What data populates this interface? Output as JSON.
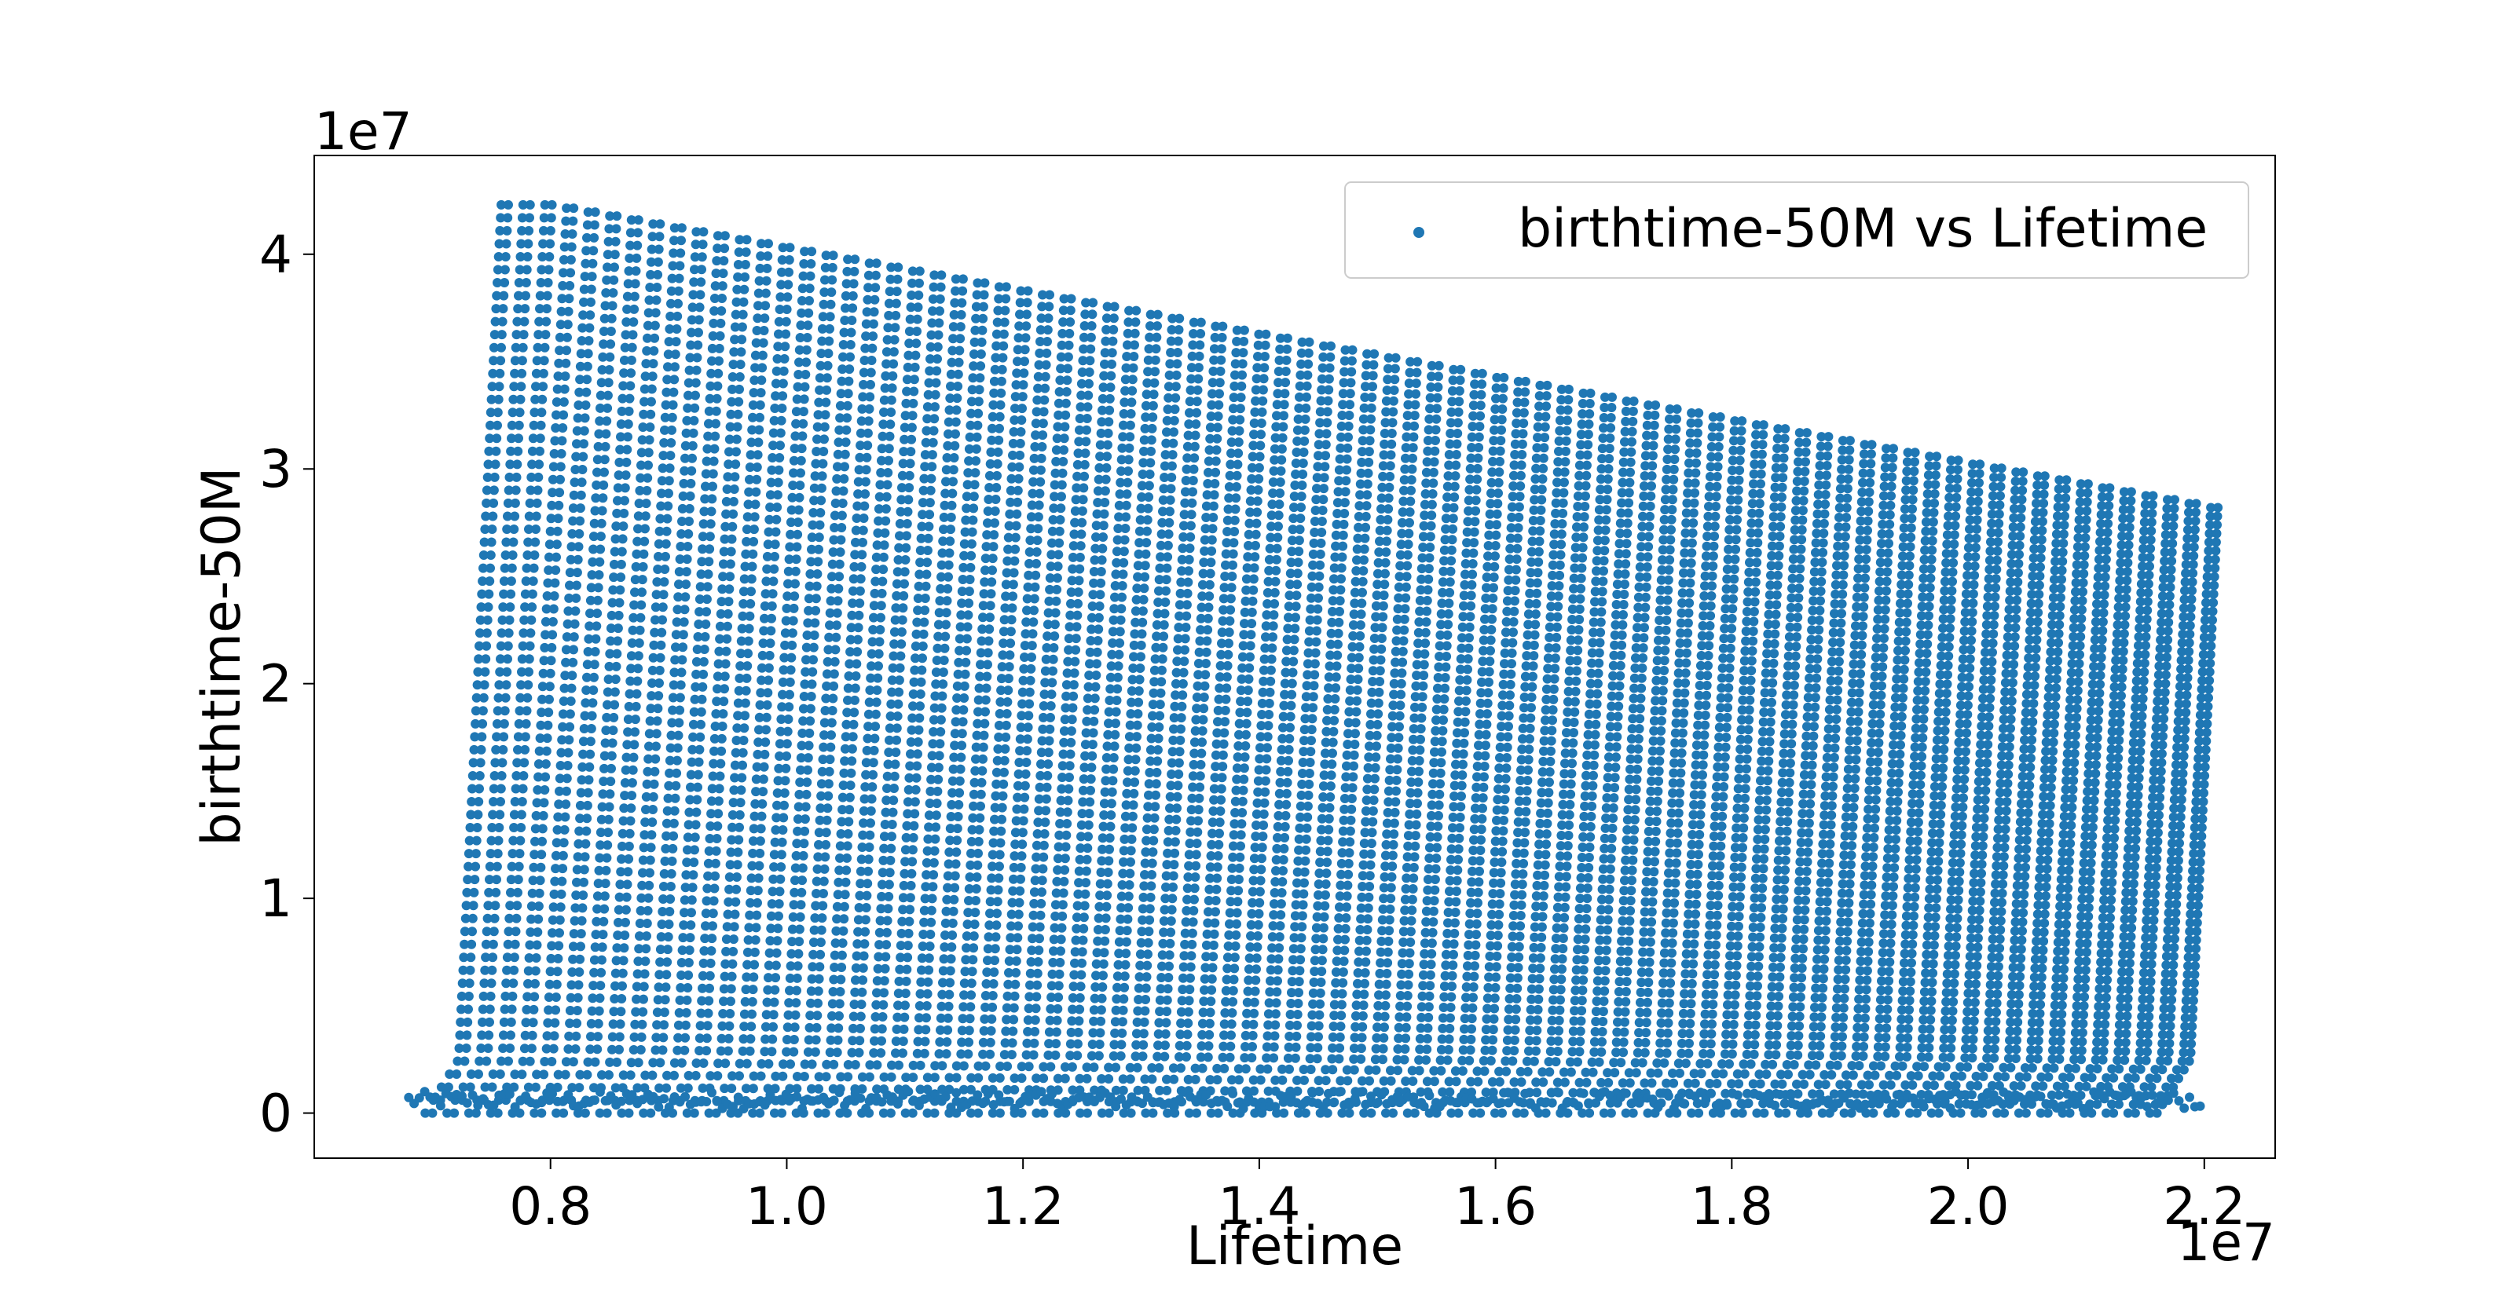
{
  "chart_data": {
    "type": "scatter",
    "title": "",
    "xlabel": "Lifetime",
    "ylabel": "birthtime-50M",
    "x_offset_label": "1e7",
    "y_offset_label": "1e7",
    "xlim": [
      6000000,
      22600000
    ],
    "ylim": [
      -2100000,
      44600000
    ],
    "xticks": [
      8000000,
      10000000,
      12000000,
      14000000,
      16000000,
      18000000,
      20000000,
      22000000
    ],
    "xtick_labels": [
      "0.8",
      "1.0",
      "1.2",
      "1.4",
      "1.6",
      "1.8",
      "2.0",
      "2.2"
    ],
    "yticks": [
      0,
      10000000,
      20000000,
      30000000,
      40000000
    ],
    "ytick_labels": [
      "0",
      "1",
      "2",
      "3",
      "4"
    ],
    "grid": false,
    "legend_position": "top-right",
    "series": [
      {
        "name": "birthtime-50M vs Lifetime",
        "color": "#1f77b4",
        "description_points": {
          "base_start": [
            6800000,
            0
          ],
          "strand_start_top": [
            7600000,
            42300000
          ],
          "strand_end_top": [
            21800000,
            28200000
          ],
          "strand_count": 80,
          "strand_x_range": [
            7200000,
            21800000
          ]
        }
      }
    ]
  }
}
